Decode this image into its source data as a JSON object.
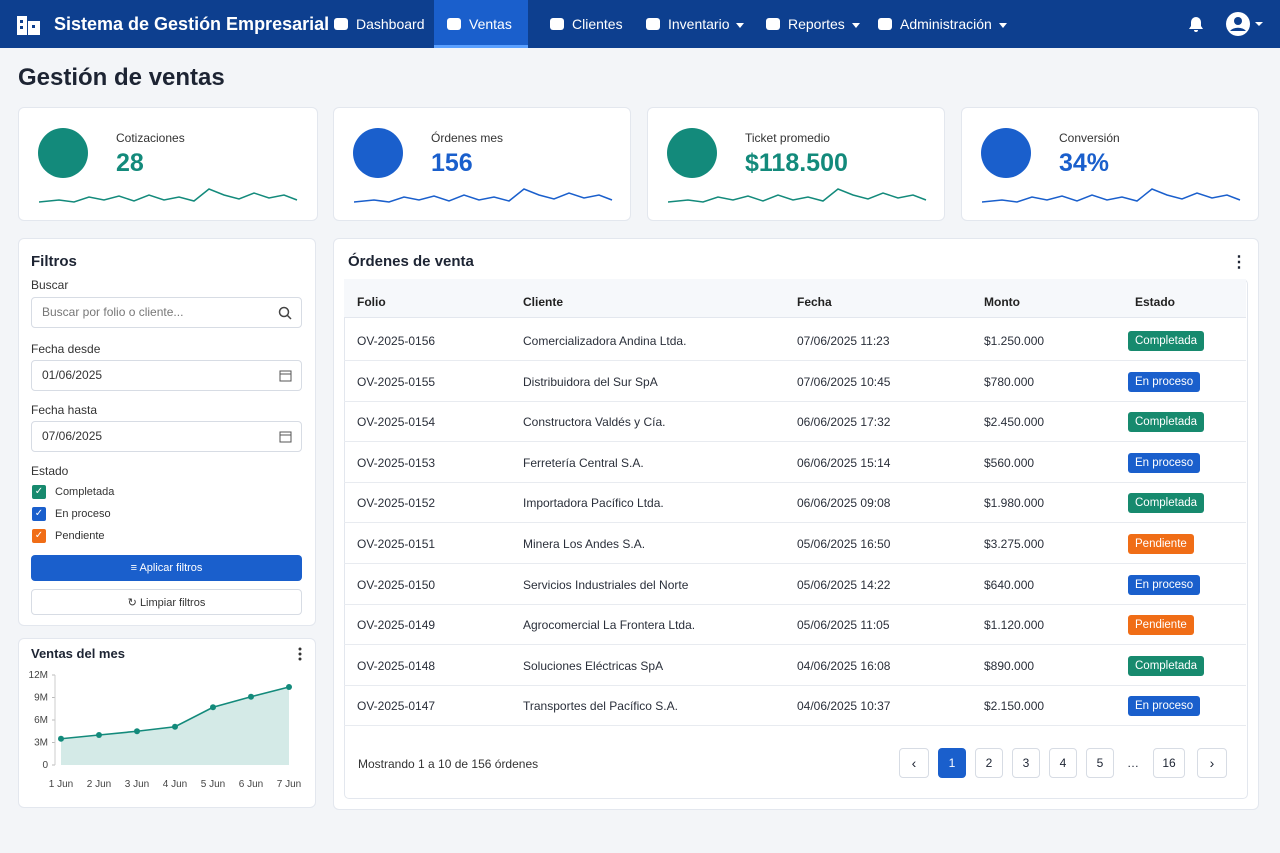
{
  "nav": {
    "brand": "Sistema de Gestión Empresarial",
    "items": [
      "Dashboard",
      "Ventas",
      "Clientes",
      "Inventario",
      "Reportes",
      "Administración"
    ],
    "active": 1
  },
  "page_title": "Gestión de ventas",
  "kpis": [
    {
      "label": "Cotizaciones",
      "value": "28",
      "color": "#138a7b"
    },
    {
      "label": "Órdenes mes",
      "value": "156",
      "color": "#1a5fcc"
    },
    {
      "label": "Ticket promedio",
      "value": "$118.500",
      "color": "#138a7b"
    },
    {
      "label": "Conversión",
      "value": "34%",
      "color": "#1a5fcc"
    }
  ],
  "filters": {
    "title": "Filtros",
    "search_label": "Buscar",
    "search_placeholder": "Buscar por folio o cliente...",
    "date_from_label": "Fecha desde",
    "date_from": "01/06/2025",
    "date_to_label": "Fecha hasta",
    "date_to": "07/06/2025",
    "status_label": "Estado",
    "statuses": [
      "Completada",
      "En proceso",
      "Pendiente"
    ],
    "apply": "Aplicar filtros",
    "clear": "Limpiar filtros"
  },
  "chart_data": {
    "type": "line",
    "title": "Ventas del mes",
    "categories": [
      "1 Jun",
      "2 Jun",
      "3 Jun",
      "4 Jun",
      "5 Jun",
      "6 Jun",
      "7 Jun"
    ],
    "values": [
      3.5,
      4.0,
      4.5,
      5.1,
      7.7,
      9.1,
      10.4
    ],
    "color": "#138a7b",
    "ylim": [
      0,
      12
    ],
    "yticks": [
      0,
      {
        "value": 3,
        "label": "3M"
      },
      {
        "value": 6,
        "label": "6M"
      },
      {
        "value": 9,
        "label": "9M"
      },
      {
        "value": 12,
        "label": "12M"
      }
    ]
  },
  "orders": {
    "title": "Órdenes de venta",
    "columns": [
      "Folio",
      "Cliente",
      "Fecha",
      "Monto",
      "Estado"
    ],
    "rows": [
      [
        "OV-2025-0156",
        "Comercializadora Andina Ltda.",
        "07/06/2025 11:23",
        "$1.250.000",
        "Completada"
      ],
      [
        "OV-2025-0155",
        "Distribuidora del Sur SpA",
        "07/06/2025 10:45",
        "$780.000",
        "En proceso"
      ],
      [
        "OV-2025-0154",
        "Constructora Valdés y Cía.",
        "06/06/2025 17:32",
        "$2.450.000",
        "Completada"
      ],
      [
        "OV-2025-0153",
        "Ferretería Central S.A.",
        "06/06/2025 15:14",
        "$560.000",
        "En proceso"
      ],
      [
        "OV-2025-0152",
        "Importadora Pacífico Ltda.",
        "06/06/2025 09:08",
        "$1.980.000",
        "Completada"
      ],
      [
        "OV-2025-0151",
        "Minera Los Andes S.A.",
        "05/06/2025 16:50",
        "$3.275.000",
        "Pendiente"
      ],
      [
        "OV-2025-0150",
        "Servicios Industriales del Norte",
        "05/06/2025 14:22",
        "$640.000",
        "En proceso"
      ],
      [
        "OV-2025-0149",
        "Agrocomercial La Frontera Ltda.",
        "05/06/2025 11:05",
        "$1.120.000",
        "Pendiente"
      ],
      [
        "OV-2025-0148",
        "Soluciones Eléctricas SpA",
        "04/06/2025 16:08",
        "$890.000",
        "Completada"
      ],
      [
        "OV-2025-0147",
        "Transportes del Pacífico S.A.",
        "04/06/2025 10:37",
        "$2.150.000",
        "En proceso"
      ]
    ],
    "status_colors": {
      "Completada": "#178a6e",
      "En proceso": "#1a5fcc",
      "Pendiente": "#f06d16"
    },
    "footer": "Mostrando 1 a 10 de 156 órdenes",
    "pages": [
      "1",
      "2",
      "3",
      "4",
      "5",
      "…",
      "16"
    ],
    "current_page": 0
  }
}
